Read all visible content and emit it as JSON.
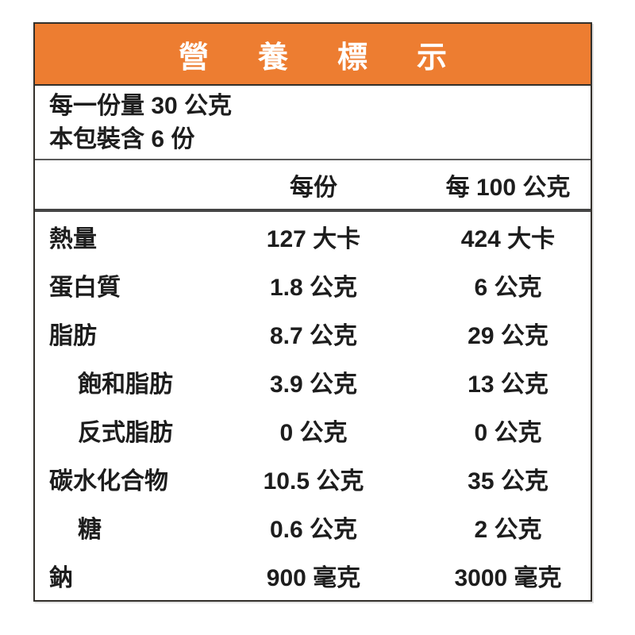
{
  "title": "營養標示",
  "serving": {
    "line1": "每一份量 30 公克",
    "line2": "本包裝含 6 份"
  },
  "columns": {
    "per_serving": "每份",
    "per_100g": "每 100 公克"
  },
  "rows": [
    {
      "name": "熱量",
      "indent": false,
      "per_serving": "127 大卡",
      "per_100g": "424 大卡"
    },
    {
      "name": "蛋白質",
      "indent": false,
      "per_serving": "1.8 公克",
      "per_100g": "6 公克"
    },
    {
      "name": "脂肪",
      "indent": false,
      "per_serving": "8.7 公克",
      "per_100g": "29 公克"
    },
    {
      "name": "飽和脂肪",
      "indent": true,
      "per_serving": "3.9 公克",
      "per_100g": "13 公克"
    },
    {
      "name": "反式脂肪",
      "indent": true,
      "per_serving": "0 公克",
      "per_100g": "0 公克"
    },
    {
      "name": "碳水化合物",
      "indent": false,
      "per_serving": "10.5 公克",
      "per_100g": "35 公克"
    },
    {
      "name": "糖",
      "indent": true,
      "per_serving": "0.6 公克",
      "per_100g": "2 公克"
    },
    {
      "name": "鈉",
      "indent": false,
      "per_serving": "900 毫克",
      "per_100g": "3000 毫克"
    }
  ],
  "colors": {
    "header_bg": "#ED7D31",
    "header_text": "#FFFFFF",
    "body_text": "#1D1D1D",
    "border_dark": "#33302B",
    "rule_thin": "#5A5A5A",
    "rule_thick": "#454545",
    "page_bg": "#FFFFFF"
  }
}
